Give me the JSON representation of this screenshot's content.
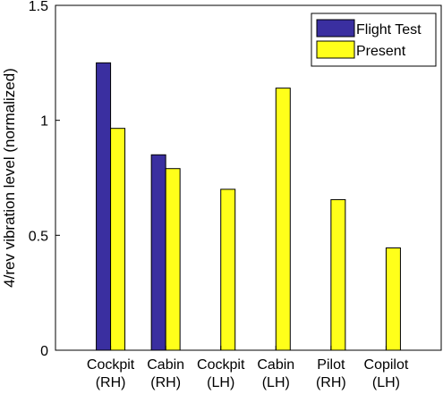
{
  "chart_data": {
    "type": "bar",
    "categories": [
      [
        "Cockpit",
        "(RH)"
      ],
      [
        "Cabin",
        "(RH)"
      ],
      [
        "Cockpit",
        "(LH)"
      ],
      [
        "Cabin",
        "(LH)"
      ],
      [
        "Pilot",
        "(RH)"
      ],
      [
        "Copilot",
        "(LH)"
      ]
    ],
    "series": [
      {
        "name": "Flight Test",
        "color": "#3a2fa0",
        "values": [
          1.25,
          0.85,
          null,
          null,
          null,
          null
        ]
      },
      {
        "name": "Present",
        "color": "#ffff1a",
        "values": [
          0.965,
          0.79,
          0.7,
          1.14,
          0.655,
          0.445
        ]
      }
    ],
    "title": "",
    "xlabel": "",
    "ylabel": "4/rev vibration level (normalized)",
    "ylim": [
      0,
      1.5
    ],
    "yticks": [
      0,
      0.5,
      1,
      1.5
    ],
    "ytick_labels": [
      "0",
      "0.5",
      "1",
      "1.5"
    ],
    "grid": false,
    "legend_position": "top-right"
  }
}
